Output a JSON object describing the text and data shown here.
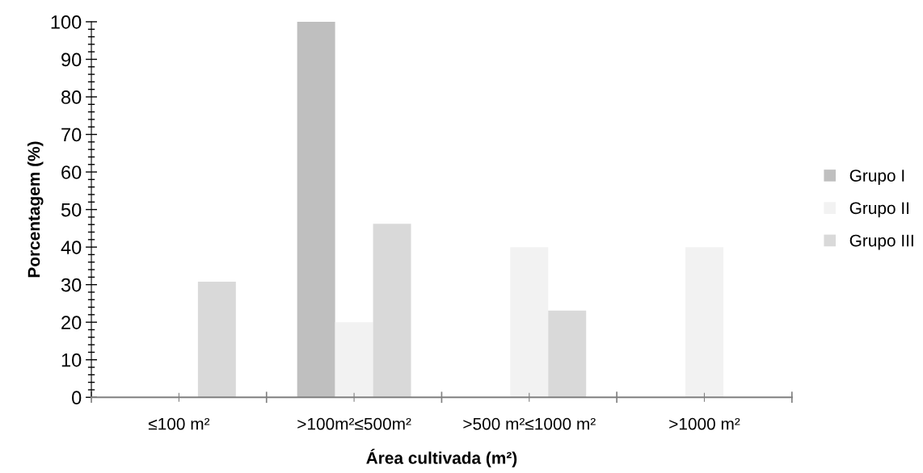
{
  "chart_data": {
    "type": "bar",
    "categories": [
      "≤100 m²",
      ">100m²≤500m²",
      ">500 m²≤1000 m²",
      ">1000 m²"
    ],
    "series": [
      {
        "name": "Grupo I",
        "color": "#bfbfbf",
        "values": [
          0,
          100,
          0,
          0
        ]
      },
      {
        "name": "Grupo II",
        "color": "#f2f2f2",
        "values": [
          0,
          20,
          40,
          40
        ]
      },
      {
        "name": "Grupo III",
        "color": "#d9d9d9",
        "values": [
          30.8,
          46.2,
          23.1,
          0
        ]
      }
    ],
    "xlabel": "Área cultivada (m²)",
    "ylabel": "Porcentagem (%)",
    "ylim": [
      0,
      100
    ],
    "yticks": [
      0,
      10,
      20,
      30,
      40,
      50,
      60,
      70,
      80,
      90,
      100
    ],
    "grid": false,
    "legend": "right"
  }
}
